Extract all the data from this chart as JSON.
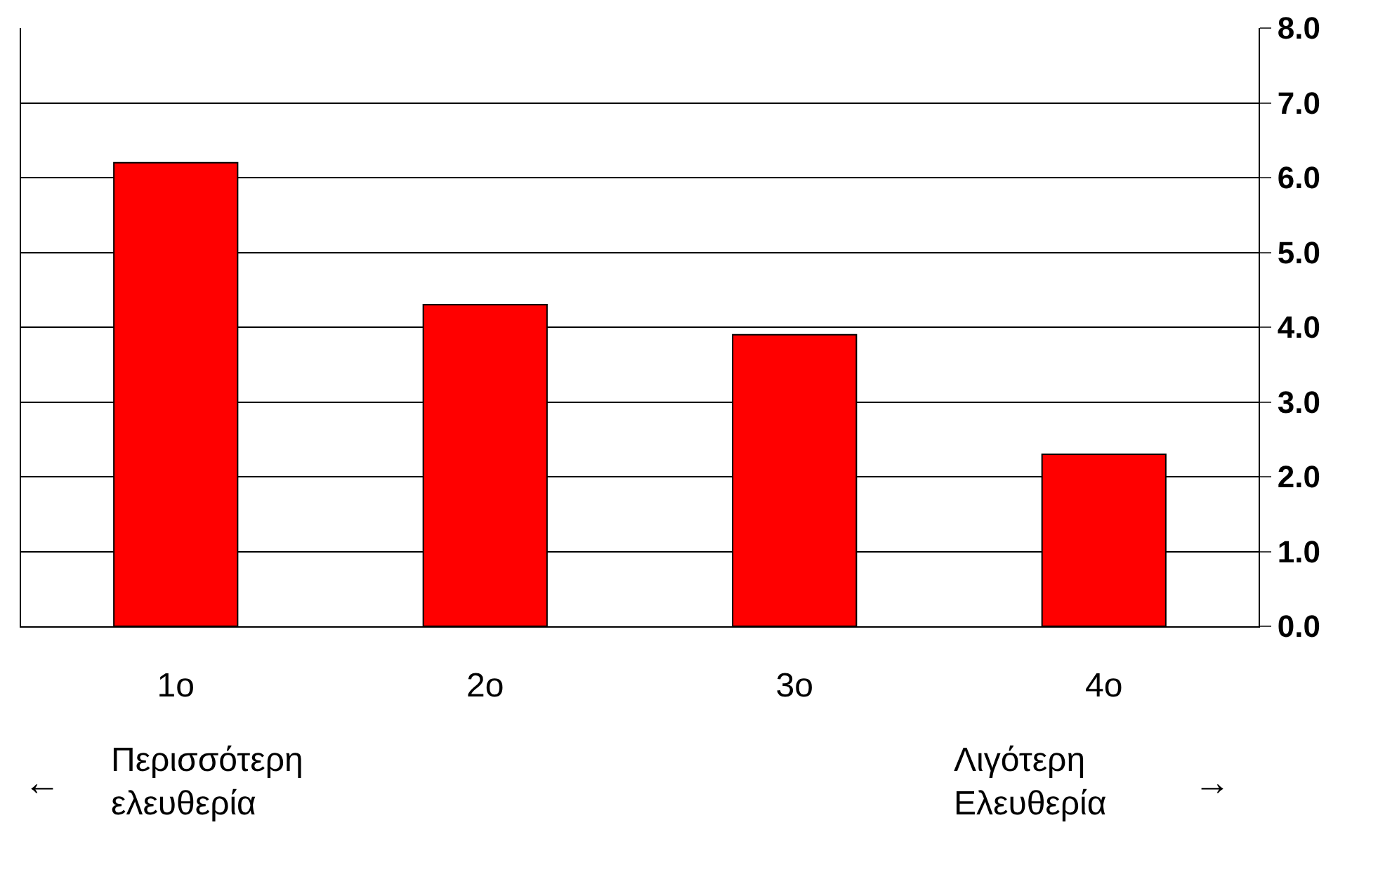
{
  "chart_data": {
    "type": "bar",
    "categories": [
      "1o",
      "2o",
      "3o",
      "4o"
    ],
    "values": [
      6.2,
      4.3,
      3.9,
      2.3
    ],
    "color": "#ff0000",
    "ylim": [
      0,
      8
    ],
    "yticks": [
      {
        "value": 0,
        "label": "0.0"
      },
      {
        "value": 1,
        "label": "1.0"
      },
      {
        "value": 2,
        "label": "2.0"
      },
      {
        "value": 3,
        "label": "3.0"
      },
      {
        "value": 4,
        "label": "4.0"
      },
      {
        "value": 5,
        "label": "5.0"
      },
      {
        "value": 6,
        "label": "6.0"
      },
      {
        "value": 7,
        "label": "7.0"
      },
      {
        "value": 8,
        "label": "8.0"
      }
    ],
    "grid": "y",
    "annotations": [
      "←",
      "Περισσότερη\nελευθερία",
      "Λιγότερη\nΕλευθερία",
      "→"
    ]
  }
}
